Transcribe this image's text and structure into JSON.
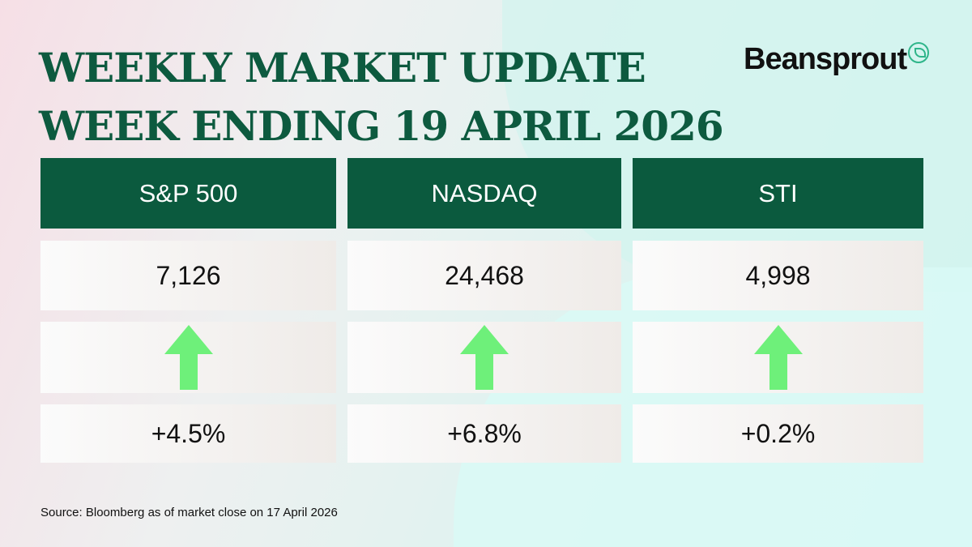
{
  "title": {
    "line1": "WEEKLY MARKET UPDATE",
    "line2": "WEEK ENDING 19 APRIL 2026"
  },
  "logo": {
    "text": "Beansprout",
    "icon": "sprout-icon"
  },
  "indices": [
    {
      "name": "S&P 500",
      "value": "7,126",
      "direction": "up",
      "change": "+4.5%"
    },
    {
      "name": "NASDAQ",
      "value": "24,468",
      "direction": "up",
      "change": "+6.8%"
    },
    {
      "name": "STI",
      "value": "4,998",
      "direction": "up",
      "change": "+0.2%"
    }
  ],
  "colors": {
    "header": "#0b5a3e",
    "arrow_up": "#6ef07a"
  },
  "source": "Source: Bloomberg as of market close on 17 April 2026"
}
